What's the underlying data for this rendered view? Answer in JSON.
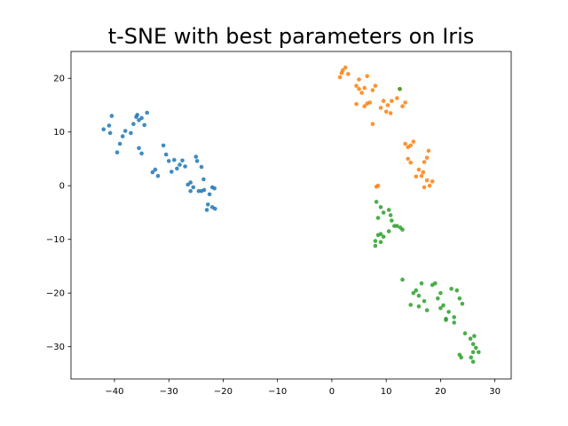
{
  "chart_data": {
    "type": "scatter",
    "title": "t-SNE with best parameters on Iris",
    "xlabel": "",
    "ylabel": "",
    "xlim": [
      -48,
      33
    ],
    "ylim": [
      -36,
      25
    ],
    "xticks": [
      -40,
      -30,
      -20,
      -10,
      0,
      10,
      20,
      30
    ],
    "yticks": [
      -30,
      -20,
      -10,
      0,
      10,
      20
    ],
    "grid": false,
    "legend": "none",
    "series": [
      {
        "color": "#1f77b4",
        "points": [
          [
            -42,
            10.5
          ],
          [
            -41,
            11.2
          ],
          [
            -40.5,
            13
          ],
          [
            -40.8,
            9.8
          ],
          [
            -39.5,
            6.2
          ],
          [
            -39,
            7.8
          ],
          [
            -38.5,
            9.2
          ],
          [
            -38,
            10.2
          ],
          [
            -37,
            9.8
          ],
          [
            -36.5,
            11.5
          ],
          [
            -36,
            12.8
          ],
          [
            -35.8,
            13.2
          ],
          [
            -35.5,
            12.2
          ],
          [
            -35,
            12.6
          ],
          [
            -34.5,
            11.3
          ],
          [
            -34,
            13.6
          ],
          [
            -35.5,
            7
          ],
          [
            -35,
            6
          ],
          [
            -33,
            2.5
          ],
          [
            -32.5,
            3
          ],
          [
            -32,
            1.8
          ],
          [
            -31,
            7.5
          ],
          [
            -30.5,
            5.8
          ],
          [
            -30,
            4.6
          ],
          [
            -29.5,
            2.6
          ],
          [
            -29,
            4.8
          ],
          [
            -28.5,
            3.2
          ],
          [
            -28,
            3.9
          ],
          [
            -27.5,
            4.7
          ],
          [
            -27,
            3.6
          ],
          [
            -26.5,
            0.2
          ],
          [
            -26,
            0.6
          ],
          [
            -25.5,
            -0.3
          ],
          [
            -25,
            5.4
          ],
          [
            -24.8,
            4.6
          ],
          [
            -24,
            3.5
          ],
          [
            -24,
            -1
          ],
          [
            -23.5,
            -0.8
          ],
          [
            -23.6,
            1.2
          ],
          [
            -22.8,
            -3.5
          ],
          [
            -22,
            -0.3
          ],
          [
            -22,
            -4
          ],
          [
            -21.6,
            -0.5
          ],
          [
            -21.5,
            -4.3
          ],
          [
            -22.5,
            -1.6
          ],
          [
            -23,
            -4.5
          ],
          [
            -24.5,
            -1
          ],
          [
            -26,
            -1
          ]
        ]
      },
      {
        "color": "#ff7f0e",
        "points": [
          [
            1.5,
            20.2
          ],
          [
            2,
            21.5
          ],
          [
            2.5,
            22
          ],
          [
            1.8,
            21
          ],
          [
            3,
            20.8
          ],
          [
            4.5,
            18.6
          ],
          [
            5,
            18
          ],
          [
            5.5,
            17.3
          ],
          [
            5,
            19.8
          ],
          [
            6.5,
            20.4
          ],
          [
            6,
            18.2
          ],
          [
            7.5,
            17.8
          ],
          [
            8,
            18.6
          ],
          [
            6.5,
            15.3
          ],
          [
            7,
            15.5
          ],
          [
            6,
            14.8
          ],
          [
            7.5,
            11.5
          ],
          [
            9,
            14.5
          ],
          [
            9.5,
            15.8
          ],
          [
            10,
            13.8
          ],
          [
            10.3,
            15
          ],
          [
            10.8,
            13.5
          ],
          [
            11,
            15.8
          ],
          [
            12,
            16.3
          ],
          [
            12.5,
            18
          ],
          [
            13,
            14.8
          ],
          [
            13.5,
            15.5
          ],
          [
            4.5,
            15.2
          ],
          [
            13.5,
            7.8
          ],
          [
            14,
            7.2
          ],
          [
            14.5,
            7.5
          ],
          [
            15,
            8.2
          ],
          [
            14,
            5
          ],
          [
            14.5,
            4.3
          ],
          [
            15.5,
            1.7
          ],
          [
            16,
            3
          ],
          [
            16.5,
            1.8
          ],
          [
            16.8,
            2.5
          ],
          [
            17,
            4.4
          ],
          [
            17.5,
            5.2
          ],
          [
            17.8,
            6.5
          ],
          [
            17.5,
            1
          ],
          [
            18,
            0
          ],
          [
            18.5,
            0.8
          ],
          [
            17,
            -0.3
          ],
          [
            8.2,
            -0.2
          ],
          [
            8.5,
            0
          ]
        ]
      },
      {
        "color": "#2ca02c",
        "points": [
          [
            12.5,
            18
          ],
          [
            8.2,
            -3
          ],
          [
            9,
            -4
          ],
          [
            9.5,
            -5
          ],
          [
            10.5,
            -4.5
          ],
          [
            10.8,
            -5.5
          ],
          [
            11,
            -6.5
          ],
          [
            11.5,
            -7.5
          ],
          [
            12,
            -7.5
          ],
          [
            12.6,
            -7.8
          ],
          [
            13,
            -8.2
          ],
          [
            8.5,
            -6
          ],
          [
            9,
            -9
          ],
          [
            8.5,
            -9.2
          ],
          [
            8,
            -10.3
          ],
          [
            9.5,
            -9.5
          ],
          [
            8,
            -11.2
          ],
          [
            9,
            -10.5
          ],
          [
            10.5,
            -8.5
          ],
          [
            13,
            -17.5
          ],
          [
            14.5,
            -22.2
          ],
          [
            15,
            -20
          ],
          [
            15.5,
            -19.5
          ],
          [
            16,
            -20.5
          ],
          [
            16.5,
            -18.2
          ],
          [
            16,
            -22.5
          ],
          [
            17,
            -21.5
          ],
          [
            17.5,
            -23.2
          ],
          [
            18.5,
            -18.5
          ],
          [
            19,
            -18.2
          ],
          [
            19.5,
            -21
          ],
          [
            20,
            -22.8
          ],
          [
            20.5,
            -22.3
          ],
          [
            21,
            -24.8
          ],
          [
            21.5,
            -23.5
          ],
          [
            22,
            -19.2
          ],
          [
            22.5,
            -24.5
          ],
          [
            22.5,
            -25.5
          ],
          [
            23,
            -19.5
          ],
          [
            23.5,
            -21
          ],
          [
            24,
            -22
          ],
          [
            23.5,
            -31.5
          ],
          [
            23.8,
            -32
          ],
          [
            24.5,
            -27.5
          ],
          [
            25.5,
            -28.5
          ],
          [
            26,
            -29.5
          ],
          [
            26.2,
            -28
          ],
          [
            26,
            -31
          ],
          [
            26.5,
            -30.2
          ],
          [
            25.6,
            -32
          ],
          [
            26,
            -32.8
          ],
          [
            27,
            -31
          ],
          [
            20,
            -20
          ],
          [
            21,
            -25
          ]
        ]
      }
    ]
  }
}
